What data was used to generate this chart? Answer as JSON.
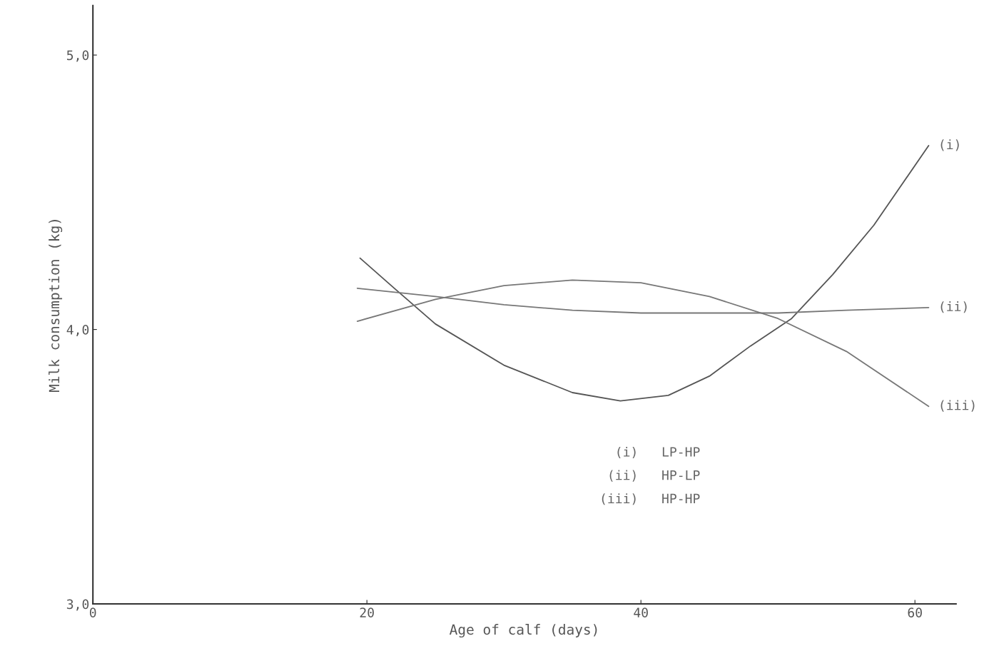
{
  "chart_data": {
    "type": "line",
    "xlabel": "Age of calf (days)",
    "ylabel": "Milk consumption (kg)",
    "xlim": [
      0,
      63
    ],
    "ylim": [
      3.0,
      5.18
    ],
    "xticks": [
      0,
      20,
      40,
      60
    ],
    "yticks": [
      {
        "value": 3.0,
        "label": "3,0"
      },
      {
        "value": 4.0,
        "label": "4,0"
      },
      {
        "value": 5.0,
        "label": "5,0"
      }
    ],
    "grid": false,
    "marker": "none",
    "line_style": "solid",
    "series": [
      {
        "name": "(i)",
        "color": "#555555",
        "x": [
          19.5,
          22,
          25,
          30,
          35,
          38.5,
          42,
          45,
          48,
          51,
          54,
          57,
          61
        ],
        "values": [
          4.26,
          4.15,
          4.02,
          3.87,
          3.77,
          3.74,
          3.76,
          3.83,
          3.94,
          4.04,
          4.2,
          4.38,
          4.67
        ]
      },
      {
        "name": "(ii)",
        "color": "#777777",
        "x": [
          19.3,
          25,
          30,
          35,
          40,
          45,
          50,
          55,
          61
        ],
        "values": [
          4.15,
          4.12,
          4.09,
          4.07,
          4.06,
          4.06,
          4.06,
          4.07,
          4.08
        ]
      },
      {
        "name": "(iii)",
        "color": "#777777",
        "x": [
          19.3,
          25,
          30,
          35,
          40,
          45,
          50,
          55,
          61
        ],
        "values": [
          4.03,
          4.11,
          4.16,
          4.18,
          4.17,
          4.12,
          4.04,
          3.92,
          3.72
        ]
      }
    ],
    "annotations": [
      "(i)  LP-HP",
      "(ii)  HP-LP",
      "(iii)  HP-HP"
    ]
  }
}
